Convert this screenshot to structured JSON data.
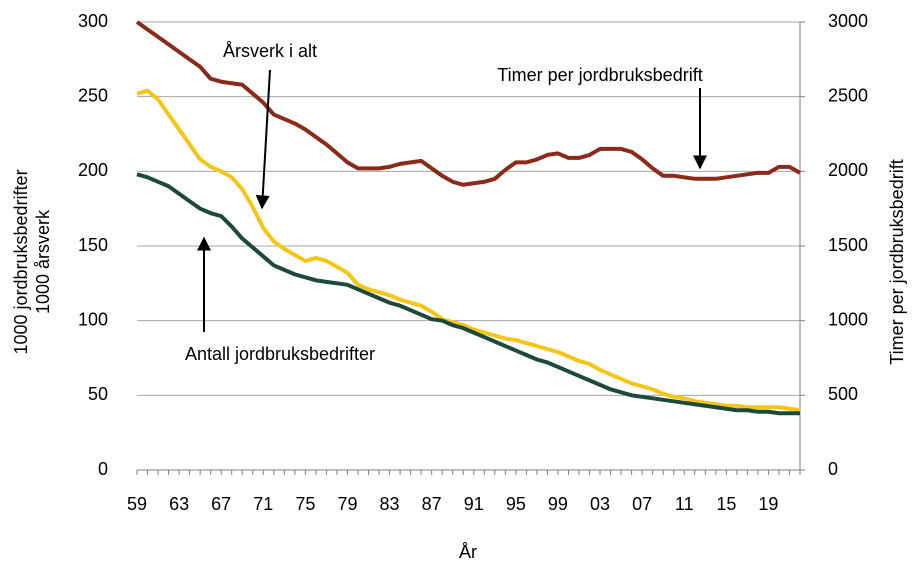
{
  "chart_data": {
    "type": "line",
    "ylabel": [
      "1000 jordbruksbedrifter",
      "1000 årsverk"
    ],
    "y2label": "Timer per jordbruksbedrift",
    "xlabel": "År",
    "categories": [
      "59",
      null,
      null,
      null,
      "63",
      null,
      null,
      null,
      "67",
      null,
      null,
      null,
      "71",
      null,
      null,
      null,
      "75",
      null,
      null,
      null,
      "79",
      null,
      null,
      null,
      "83",
      null,
      null,
      null,
      "87",
      null,
      null,
      null,
      "91",
      null,
      null,
      null,
      "95",
      null,
      null,
      null,
      "99",
      null,
      null,
      null,
      "03",
      null,
      null,
      null,
      "07",
      null,
      null,
      null,
      "11",
      null,
      null,
      null,
      "15",
      null,
      null,
      null,
      "19",
      null,
      null,
      null
    ],
    "ylim": [
      0,
      300
    ],
    "yticks": [
      0,
      50,
      100,
      150,
      200,
      250,
      300
    ],
    "y2lim": [
      0,
      3000
    ],
    "y2ticks": [
      0,
      500,
      1000,
      1500,
      2000,
      2500,
      3000
    ],
    "grid": true,
    "series": [
      {
        "name": "Timer per jordbruksbedrift",
        "color": "#8b2a1a",
        "axis": "y2",
        "values": [
          3000,
          2950,
          2900,
          2850,
          2800,
          2750,
          2700,
          2620,
          2600,
          2590,
          2580,
          2520,
          2460,
          2380,
          2350,
          2320,
          2280,
          2230,
          2180,
          2120,
          2060,
          2020,
          2020,
          2020,
          2030,
          2050,
          2060,
          2070,
          2020,
          1970,
          1930,
          1910,
          1920,
          1930,
          1950,
          2010,
          2060,
          2060,
          2080,
          2110,
          2120,
          2090,
          2090,
          2110,
          2150,
          2150,
          2150,
          2130,
          2080,
          2020,
          1970,
          1970,
          1960,
          1950,
          1950,
          1950,
          1960,
          1970,
          1980,
          1990,
          1990,
          2030,
          2030,
          1990
        ]
      },
      {
        "name": "Årsverk i alt",
        "color": "#f5c518",
        "values": [
          252,
          254,
          248,
          238,
          228,
          218,
          208,
          203,
          200,
          196,
          188,
          176,
          162,
          153,
          148,
          144,
          140,
          142,
          140,
          136,
          132,
          124,
          121,
          119,
          117,
          114,
          112,
          110,
          106,
          101,
          99,
          97,
          94,
          92,
          90,
          88,
          87,
          85,
          83,
          81,
          79,
          76,
          73,
          71,
          67,
          64,
          61,
          58,
          56,
          54,
          51,
          49,
          48,
          46,
          45,
          44,
          43,
          43,
          42,
          42,
          42,
          42,
          41,
          40
        ]
      },
      {
        "name": "Antall jordbruksbedrifter",
        "color": "#1d4a38",
        "values": [
          198,
          196,
          193,
          190,
          185,
          180,
          175,
          172,
          170,
          163,
          155,
          149,
          143,
          137,
          134,
          131,
          129,
          127,
          126,
          125,
          124,
          121,
          118,
          115,
          112,
          110,
          107,
          104,
          101,
          100,
          97,
          95,
          92,
          89,
          86,
          83,
          80,
          77,
          74,
          72,
          69,
          66,
          63,
          60,
          57,
          54,
          52,
          50,
          49,
          48,
          47,
          46,
          45,
          44,
          43,
          42,
          41,
          40,
          40,
          39,
          39,
          38,
          38,
          38
        ]
      }
    ]
  }
}
